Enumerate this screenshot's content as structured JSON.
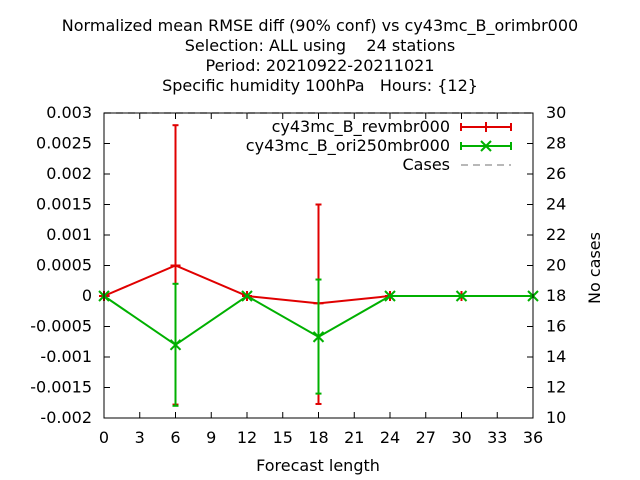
{
  "chart_data": {
    "type": "line",
    "title_lines": [
      "Normalized mean RMSE diff (90% conf) vs cy43mc_B_orimbr000",
      "Selection: ALL using    24 stations",
      "Period: 20210922-20211021",
      "Specific humidity 100hPa   Hours: {12}"
    ],
    "xlabel": "Forecast length",
    "ylabel_right": "No cases",
    "xlim": [
      0,
      36
    ],
    "ylim": [
      -0.002,
      0.003
    ],
    "y2lim": [
      10,
      30
    ],
    "x_ticks": [
      "0",
      "3",
      "6",
      "9",
      "12",
      "15",
      "18",
      "21",
      "24",
      "27",
      "30",
      "33",
      "36"
    ],
    "y_ticks": [
      "0.003",
      "0.0025",
      "0.002",
      "0.0015",
      "0.001",
      "0.0005",
      "0",
      "-0.0005",
      "-0.001",
      "-0.0015",
      "-0.002"
    ],
    "y2_ticks": [
      "30",
      "28",
      "26",
      "24",
      "22",
      "20",
      "18",
      "16",
      "14",
      "12",
      "10"
    ],
    "legend_position": "top-right",
    "series": [
      {
        "name": "cy43mc_B_revmbr000",
        "color": "#e00000",
        "marker": "plus",
        "x": [
          0,
          6,
          12,
          18,
          24,
          30
        ],
        "y": [
          0,
          0.0005,
          0,
          -0.00012,
          0,
          0
        ],
        "err_low": [
          0,
          -0.00178,
          0,
          -0.00177,
          0,
          0
        ],
        "err_high": [
          0,
          0.0028,
          0,
          0.0015,
          0,
          0
        ]
      },
      {
        "name": "cy43mc_B_ori250mbr000",
        "color": "#00b000",
        "marker": "x",
        "x": [
          0,
          6,
          12,
          18,
          24,
          30,
          36
        ],
        "y": [
          0,
          -0.0008,
          0,
          -0.00067,
          0,
          0,
          0
        ],
        "err_low": [
          0,
          -0.0018,
          0,
          -0.0016,
          0,
          0,
          0
        ],
        "err_high": [
          0,
          0.0002,
          0,
          0.00027,
          0,
          0,
          0
        ]
      },
      {
        "name": "Cases",
        "color": "#a0a0a0",
        "dashed": true,
        "x": [
          0,
          6,
          12,
          18,
          24,
          30,
          36
        ],
        "y": [
          30,
          30,
          30,
          30,
          30,
          30,
          30
        ]
      }
    ]
  }
}
